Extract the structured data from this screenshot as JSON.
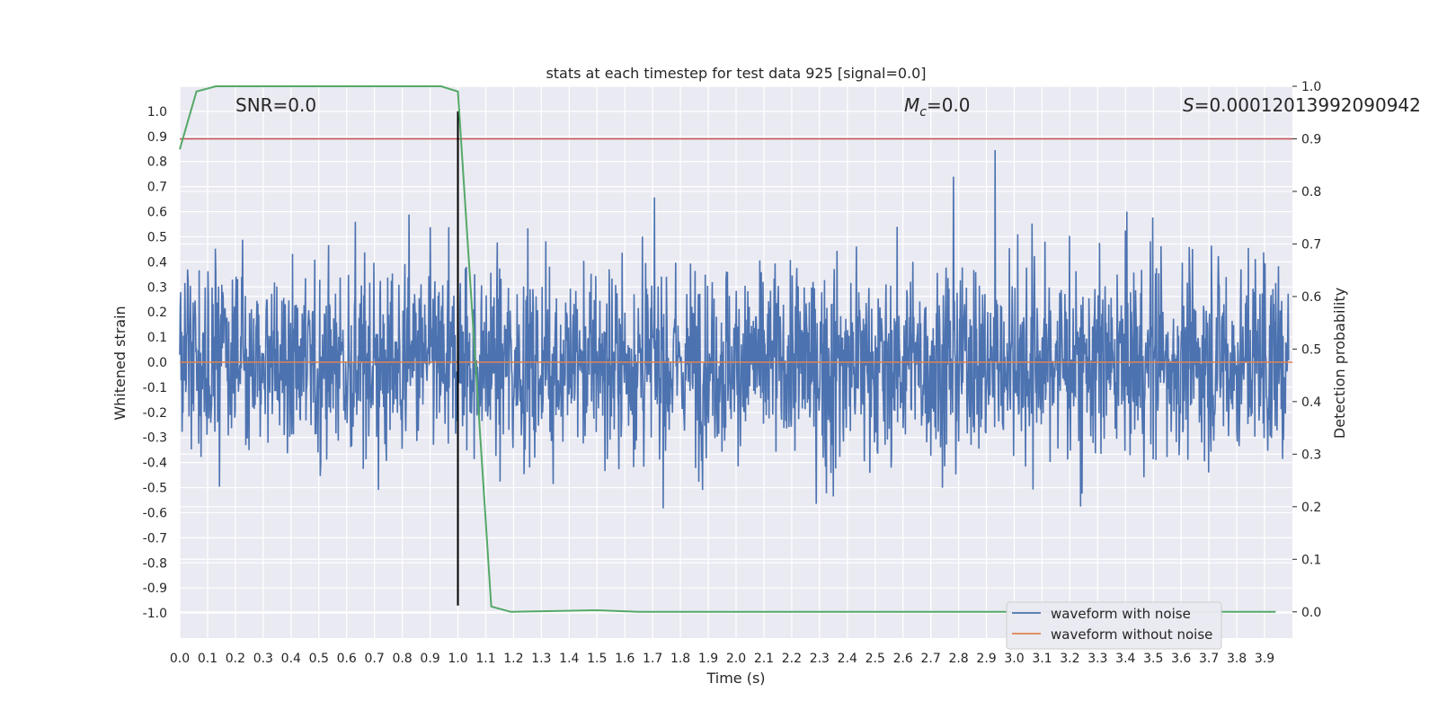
{
  "chart_data": {
    "type": "line",
    "title": "stats at each timestep for test data 925 [signal=0.0]",
    "xlabel": "Time (s)",
    "ylabel": "Whitened strain",
    "y2label": "Detection probability",
    "xlim": [
      0.0,
      4.0
    ],
    "ylim": [
      -1.1,
      1.1
    ],
    "y2lim": [
      -0.05,
      1.0
    ],
    "xticks": [
      "0.0",
      "0.1",
      "0.2",
      "0.3",
      "0.4",
      "0.5",
      "0.6",
      "0.7",
      "0.8",
      "0.9",
      "1.0",
      "1.1",
      "1.2",
      "1.3",
      "1.4",
      "1.5",
      "1.6",
      "1.7",
      "1.8",
      "1.9",
      "2.0",
      "2.1",
      "2.2",
      "2.3",
      "2.4",
      "2.5",
      "2.6",
      "2.7",
      "2.8",
      "2.9",
      "3.0",
      "3.1",
      "3.2",
      "3.3",
      "3.4",
      "3.5",
      "3.6",
      "3.7",
      "3.8",
      "3.9"
    ],
    "yticks": [
      "1.0",
      "0.9",
      "0.8",
      "0.7",
      "0.6",
      "0.5",
      "0.4",
      "0.3",
      "0.2",
      "0.1",
      "0.0",
      "-0.1",
      "-0.2",
      "-0.3",
      "-0.4",
      "-0.5",
      "-0.6",
      "-0.7",
      "-0.8",
      "-0.9",
      "-1.0"
    ],
    "y2ticks": [
      "1.0",
      "0.9",
      "0.8",
      "0.7",
      "0.6",
      "0.5",
      "0.4",
      "0.3",
      "0.2",
      "0.1",
      "0.0"
    ],
    "annotations": {
      "snr": "SNR=0.0",
      "mc_symbol": "M",
      "mc_subscript": "c",
      "mc_value": "=0.0",
      "s_symbol": "S",
      "s_value": "=0.00012013992090942"
    },
    "threshold": 0.9,
    "zero_line": 0.0,
    "marker_time": 1.0,
    "noise_amplitude": 0.8,
    "series": [
      {
        "name": "waveform with noise",
        "color": "#4c72b0"
      },
      {
        "name": "waveform without noise",
        "color": "#dd8452",
        "values": "constant 0.0"
      }
    ],
    "detection_probability": {
      "color": "#55a868",
      "x": [
        0.0,
        0.06,
        0.13,
        0.5,
        0.94,
        1.0,
        1.12,
        1.19,
        1.5,
        1.65,
        2.0,
        3.0,
        3.94
      ],
      "y": [
        0.88,
        0.99,
        1.0,
        1.0,
        1.0,
        0.99,
        0.01,
        0.0,
        0.003,
        0.0,
        0.0,
        0.0,
        0.0
      ]
    },
    "legend_position": "lower-right",
    "grid": true
  }
}
